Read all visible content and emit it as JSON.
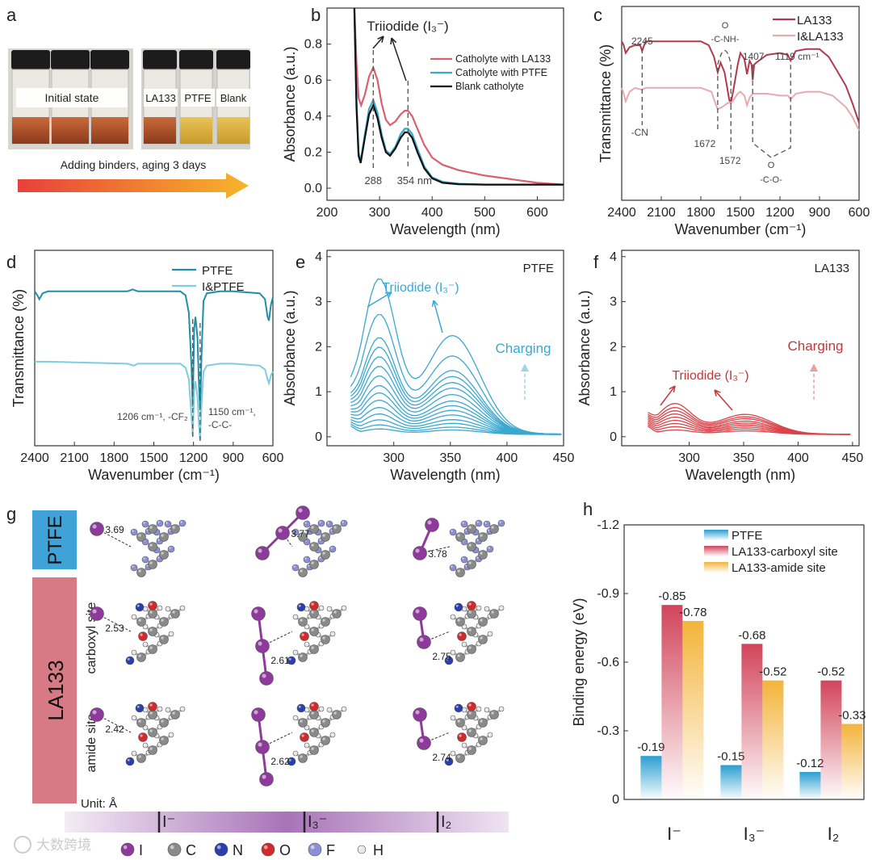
{
  "panel_labels": [
    "a",
    "b",
    "c",
    "d",
    "e",
    "f",
    "g",
    "h"
  ],
  "panel_a": {
    "left_photo_label": "Initial state",
    "right_photo_labels": [
      "LA133",
      "PTFE",
      "Blank"
    ],
    "arrow_caption": "Adding binders, aging 3 days"
  },
  "chart_data": [
    {
      "id": "b",
      "type": "line",
      "title": "",
      "xlabel": "Wavelength (nm)",
      "ylabel": "Absorbance (a.u.)",
      "xlim": [
        200,
        650
      ],
      "ylim": [
        0,
        1.0
      ],
      "xticks": [
        200,
        300,
        400,
        500,
        600
      ],
      "yticks": [
        0.0,
        0.2,
        0.4,
        0.6,
        0.8
      ],
      "annotations": [
        "Triiodide (I₃⁻)",
        "288",
        "354 nm"
      ],
      "legend_position": "top-right",
      "series": [
        {
          "name": "Catholyte with LA133",
          "color": "#d9606e",
          "x": [
            252,
            256,
            260,
            265,
            272,
            280,
            288,
            296,
            304,
            312,
            320,
            330,
            340,
            348,
            354,
            362,
            372,
            385,
            400,
            420,
            450,
            500,
            550,
            600,
            650
          ],
          "y": [
            1.0,
            0.7,
            0.5,
            0.46,
            0.52,
            0.62,
            0.67,
            0.6,
            0.47,
            0.38,
            0.35,
            0.37,
            0.41,
            0.43,
            0.43,
            0.4,
            0.33,
            0.24,
            0.17,
            0.13,
            0.1,
            0.07,
            0.05,
            0.03,
            0.02
          ]
        },
        {
          "name": "Catholyte with PTFE",
          "color": "#3ba7c9",
          "x": [
            252,
            256,
            260,
            264,
            272,
            280,
            288,
            296,
            304,
            312,
            320,
            330,
            340,
            348,
            354,
            362,
            372,
            385,
            400,
            420,
            450,
            500,
            550,
            600,
            650
          ],
          "y": [
            1.0,
            0.5,
            0.2,
            0.15,
            0.3,
            0.44,
            0.49,
            0.42,
            0.3,
            0.21,
            0.19,
            0.23,
            0.3,
            0.33,
            0.33,
            0.3,
            0.22,
            0.12,
            0.06,
            0.035,
            0.025,
            0.02,
            0.02,
            0.02,
            0.02
          ]
        },
        {
          "name": "Blank catholyte",
          "color": "#111111",
          "x": [
            252,
            256,
            260,
            264,
            272,
            280,
            288,
            296,
            304,
            312,
            320,
            330,
            340,
            348,
            354,
            362,
            372,
            385,
            400,
            420,
            450,
            500,
            550,
            600,
            650
          ],
          "y": [
            1.0,
            0.45,
            0.18,
            0.14,
            0.28,
            0.41,
            0.46,
            0.39,
            0.28,
            0.2,
            0.18,
            0.22,
            0.28,
            0.31,
            0.31,
            0.28,
            0.2,
            0.11,
            0.055,
            0.03,
            0.022,
            0.02,
            0.02,
            0.02,
            0.02
          ]
        }
      ]
    },
    {
      "id": "c",
      "type": "line",
      "xlabel": "Wavenumber (cm⁻¹)",
      "ylabel": "Transmittance (%)",
      "xlim": [
        2400,
        600
      ],
      "ylim": [
        0,
        100
      ],
      "xticks": [
        2400,
        2100,
        1800,
        1500,
        1200,
        900,
        600
      ],
      "annotations": [
        "2245",
        "-CN",
        "O",
        "-C-NH-",
        "1672",
        "1572",
        "1407",
        "1119 cm⁻¹",
        "O",
        "-C-O-"
      ],
      "marked_peaks": [
        2245,
        1672,
        1572,
        1407,
        1119
      ],
      "legend_position": "top-right",
      "series": [
        {
          "name": "LA133",
          "color": "#b03a4e",
          "x": [
            2400,
            2385,
            2370,
            2340,
            2300,
            2260,
            2245,
            2220,
            1800,
            1740,
            1700,
            1672,
            1650,
            1620,
            1600,
            1585,
            1572,
            1550,
            1520,
            1500,
            1470,
            1450,
            1430,
            1415,
            1407,
            1395,
            1380,
            1300,
            1200,
            1140,
            1119,
            1080,
            1000,
            900,
            830,
            760,
            700,
            650,
            600
          ],
          "y": [
            82,
            80,
            76,
            79,
            80,
            80,
            77,
            82,
            82,
            80,
            74,
            66,
            71,
            66,
            58,
            52,
            50,
            58,
            70,
            76,
            73,
            65,
            72,
            70,
            62,
            70,
            71,
            75,
            76,
            75,
            72,
            77,
            78,
            78,
            74,
            66,
            59,
            50,
            40
          ]
        },
        {
          "name": "I&LA133",
          "color": "#e8a9b0",
          "x": [
            2400,
            2385,
            2370,
            2340,
            2300,
            2245,
            2220,
            1800,
            1720,
            1690,
            1672,
            1640,
            1600,
            1560,
            1520,
            1500,
            1470,
            1450,
            1430,
            1407,
            1380,
            1300,
            1200,
            1140,
            1119,
            1080,
            1000,
            900,
            800,
            700,
            650,
            600
          ],
          "y": [
            58,
            55,
            51,
            56,
            58,
            57,
            58,
            58,
            56,
            50,
            47,
            48,
            50,
            51,
            55,
            56,
            54,
            49,
            53,
            55,
            55,
            55,
            54,
            54,
            52,
            55,
            56,
            56,
            54,
            48,
            43,
            36
          ]
        }
      ]
    },
    {
      "id": "d",
      "type": "line",
      "xlabel": "Wavenumber (cm⁻¹)",
      "ylabel": "Transmittance (%)",
      "xlim": [
        2400,
        600
      ],
      "ylim": [
        0,
        100
      ],
      "xticks": [
        2400,
        2100,
        1800,
        1500,
        1200,
        900,
        600
      ],
      "annotations": [
        "1206 cm⁻¹, -CF₂",
        "1150 cm⁻¹,",
        "-C-C-"
      ],
      "marked_peaks": [
        1206,
        1150
      ],
      "legend_position": "top-right",
      "series": [
        {
          "name": "PTFE",
          "color": "#1f8fa8",
          "x": [
            2400,
            2380,
            2365,
            2340,
            2300,
            1700,
            1660,
            1620,
            1300,
            1260,
            1235,
            1215,
            1206,
            1195,
            1185,
            1170,
            1158,
            1150,
            1140,
            1125,
            1100,
            1000,
            900,
            700,
            660,
            640,
            630,
            615,
            600
          ],
          "y": [
            79,
            77,
            75,
            78,
            79,
            79,
            80,
            79,
            79,
            77,
            68,
            40,
            20,
            60,
            66,
            55,
            30,
            18,
            45,
            74,
            78,
            79,
            79,
            78,
            75,
            66,
            64,
            72,
            76
          ]
        },
        {
          "name": "I&PTFE",
          "color": "#7dcde0",
          "x": [
            2400,
            2300,
            1700,
            1650,
            1620,
            1300,
            1260,
            1235,
            1215,
            1206,
            1195,
            1185,
            1170,
            1158,
            1150,
            1140,
            1125,
            1100,
            1000,
            900,
            700,
            660,
            640,
            630,
            615,
            600
          ],
          "y": [
            43,
            43,
            42,
            41,
            42,
            42,
            40,
            34,
            15,
            5,
            28,
            33,
            25,
            10,
            3,
            20,
            38,
            41,
            42,
            42,
            41,
            39,
            34,
            32,
            36,
            38
          ]
        }
      ]
    },
    {
      "id": "e",
      "type": "line",
      "xlabel": "Wavelength (nm)",
      "ylabel": "Absorbance (a.u.)",
      "xlim": [
        241,
        450
      ],
      "ylim": [
        0,
        4
      ],
      "xticks": [
        300,
        350,
        400,
        450
      ],
      "yticks": [
        0,
        1,
        2,
        3,
        4
      ],
      "corner_label": "PTFE",
      "annotations": [
        "Triiodide (I₃⁻)",
        "Charging"
      ],
      "color": "#3aa8d0",
      "series_model": "two-band spectra (288 nm and 354 nm peaks) recorded during charging",
      "peak_288_values": [
        0.12,
        0.2,
        0.3,
        0.42,
        0.55,
        0.7,
        0.85,
        1.0,
        1.2,
        1.4,
        1.6,
        1.8,
        2.0,
        2.5,
        3.27
      ],
      "peak_354_values": [
        0.1,
        0.16,
        0.24,
        0.32,
        0.42,
        0.52,
        0.62,
        0.72,
        0.86,
        1.0,
        1.12,
        1.25,
        1.38,
        1.7,
        2.15
      ]
    },
    {
      "id": "f",
      "type": "line",
      "xlabel": "Wavelength (nm)",
      "ylabel": "Absorbance (a.u.)",
      "xlim": [
        238,
        456
      ],
      "ylim": [
        0,
        4
      ],
      "xticks": [
        300,
        350,
        400,
        450
      ],
      "yticks": [
        0,
        1,
        2,
        3,
        4
      ],
      "corner_label": "LA133",
      "annotations": [
        "Triiodide (I₃⁻)",
        "Charging"
      ],
      "color": "#d9434a",
      "series_model": "two-band spectra (288 nm and 354 nm peaks) recorded during charging",
      "peak_288_values": [
        0.1,
        0.16,
        0.22,
        0.28,
        0.34,
        0.4,
        0.46,
        0.52,
        0.6
      ],
      "peak_354_values": [
        0.08,
        0.12,
        0.16,
        0.2,
        0.24,
        0.28,
        0.33,
        0.37,
        0.42
      ]
    },
    {
      "id": "h",
      "type": "bar",
      "xlabel": "",
      "ylabel": "Binding energy (eV)",
      "ylim": [
        0,
        -1.2
      ],
      "yticks": [
        0,
        -0.3,
        -0.6,
        -0.9,
        -1.2
      ],
      "categories": [
        "I⁻",
        "I₃⁻",
        "I₂"
      ],
      "legend_position": "top-right",
      "series": [
        {
          "name": "PTFE",
          "color": "#2a9fd0",
          "values": [
            -0.19,
            -0.15,
            -0.12
          ],
          "labels": [
            "-0.19",
            "-0.15",
            "-0.12"
          ]
        },
        {
          "name": "LA133-carboxyl site",
          "color": "#d2445a",
          "values": [
            -0.85,
            -0.68,
            -0.52
          ],
          "labels": [
            "-0.85",
            "-0.68",
            "-0.52"
          ]
        },
        {
          "name": "LA133-amide site",
          "color": "#f3b43a",
          "values": [
            -0.78,
            -0.52,
            -0.33
          ],
          "labels": [
            "-0.78",
            "-0.52",
            "-0.33"
          ]
        }
      ]
    }
  ],
  "panel_g": {
    "row_labels": {
      "ptfe": "PTFE",
      "la133": "LA133",
      "carboxyl": "carboxyl site",
      "amide": "amide site"
    },
    "distances": [
      [
        "3.69",
        "3.77",
        "3.78"
      ],
      [
        "2.53",
        "2.61",
        "2.75"
      ],
      [
        "2.42",
        "2.62",
        "2.74"
      ]
    ],
    "unit_label": "Unit: Å",
    "species_bar": [
      "I⁻",
      "I₃⁻",
      "I₂"
    ],
    "atom_legend": [
      {
        "symbol": "I",
        "color": "#8e3a9c"
      },
      {
        "symbol": "C",
        "color": "#8a8a8a"
      },
      {
        "symbol": "N",
        "color": "#2a3fae"
      },
      {
        "symbol": "O",
        "color": "#d12a2a"
      },
      {
        "symbol": "F",
        "color": "#8c8fd6"
      },
      {
        "symbol": "H",
        "color": "#e8e8e8"
      }
    ]
  },
  "watermark": "大数跨境"
}
